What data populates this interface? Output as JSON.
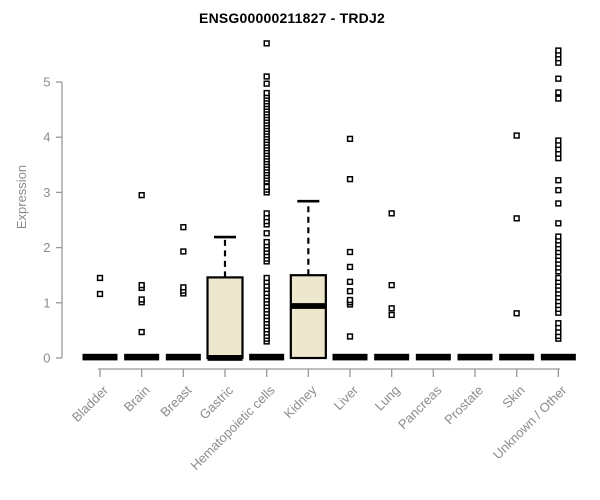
{
  "chart_data": {
    "type": "boxplot",
    "title": "ENSG00000211827 - TRDJ2",
    "ylabel": "Expression",
    "ylim": [
      0,
      5.8
    ],
    "yticks": [
      0,
      1,
      2,
      3,
      4,
      5
    ],
    "grid": false,
    "legend": false,
    "colors": {
      "box_fill": "#EDE8CD",
      "box_stroke": "#000000",
      "axis": "#999999",
      "tick_text": "#8c8c8c",
      "outlier_fill": "#ffffff"
    },
    "categories": [
      "Bladder",
      "Brain",
      "Breast",
      "Gastric",
      "Hematopoietic cells",
      "Kidney",
      "Liver",
      "Lung",
      "Pancreas",
      "Prostate",
      "Skin",
      "Unknown / Other"
    ],
    "series": [
      {
        "category": "Bladder",
        "q1": 0,
        "median": 0,
        "q3": 0,
        "whisker_low": 0,
        "whisker_high": 0,
        "outliers": [
          1.16,
          1.45
        ]
      },
      {
        "category": "Brain",
        "q1": 0,
        "median": 0,
        "q3": 0,
        "whisker_low": 0,
        "whisker_high": 0,
        "outliers": [
          0.47,
          1.01,
          1.06,
          1.27,
          1.32,
          2.95
        ]
      },
      {
        "category": "Breast",
        "q1": 0,
        "median": 0,
        "q3": 0,
        "whisker_low": 0,
        "whisker_high": 0,
        "outliers": [
          1.17,
          1.22,
          1.28,
          1.93,
          2.37
        ]
      },
      {
        "category": "Gastric",
        "q1": 0,
        "median": 0,
        "q3": 1.46,
        "whisker_low": 0,
        "whisker_high": 2.19,
        "outliers": []
      },
      {
        "category": "Hematopoietic cells",
        "q1": 0,
        "median": 0,
        "q3": 0,
        "whisker_low": 0,
        "whisker_high": 0,
        "outliers": [
          0.3,
          0.35,
          0.4,
          0.46,
          0.52,
          0.58,
          0.64,
          0.7,
          0.76,
          0.82,
          0.88,
          0.94,
          1.0,
          1.06,
          1.12,
          1.18,
          1.25,
          1.31,
          1.38,
          1.45,
          1.75,
          1.8,
          1.86,
          1.92,
          1.98,
          2.04,
          2.1,
          2.26,
          2.42,
          2.48,
          2.55,
          2.62,
          3.0,
          3.05,
          3.1,
          3.2,
          3.25,
          3.3,
          3.35,
          3.4,
          3.45,
          3.5,
          3.55,
          3.6,
          3.65,
          3.7,
          3.75,
          3.8,
          3.85,
          3.9,
          3.95,
          4.0,
          4.05,
          4.1,
          4.15,
          4.2,
          4.25,
          4.3,
          4.35,
          4.4,
          4.45,
          4.5,
          4.55,
          4.6,
          4.65,
          4.7,
          4.75,
          4.8,
          4.97,
          5.1,
          5.7
        ]
      },
      {
        "category": "Kidney",
        "q1": 0,
        "median": 0.94,
        "q3": 1.5,
        "whisker_low": 0,
        "whisker_high": 2.84,
        "outliers": []
      },
      {
        "category": "Liver",
        "q1": 0,
        "median": 0,
        "q3": 0,
        "whisker_low": 0,
        "whisker_high": 0,
        "outliers": [
          0.39,
          0.97,
          1.01,
          1.05,
          1.21,
          1.38,
          1.65,
          1.92,
          3.24,
          3.97
        ]
      },
      {
        "category": "Lung",
        "q1": 0,
        "median": 0,
        "q3": 0,
        "whisker_low": 0,
        "whisker_high": 0,
        "outliers": [
          0.78,
          0.9,
          1.32,
          2.62
        ]
      },
      {
        "category": "Pancreas",
        "q1": 0,
        "median": 0,
        "q3": 0,
        "whisker_low": 0,
        "whisker_high": 0,
        "outliers": []
      },
      {
        "category": "Prostate",
        "q1": 0,
        "median": 0,
        "q3": 0,
        "whisker_low": 0,
        "whisker_high": 0,
        "outliers": []
      },
      {
        "category": "Skin",
        "q1": 0,
        "median": 0,
        "q3": 0,
        "whisker_low": 0,
        "whisker_high": 0,
        "outliers": [
          0.81,
          2.53,
          4.03
        ]
      },
      {
        "category": "Unknown / Other",
        "q1": 0,
        "median": 0,
        "q3": 0,
        "whisker_low": 0,
        "whisker_high": 0,
        "outliers": [
          0.35,
          0.4,
          0.47,
          0.55,
          0.63,
          0.82,
          0.89,
          0.96,
          1.03,
          1.1,
          1.17,
          1.24,
          1.31,
          1.38,
          1.45,
          1.57,
          1.64,
          1.71,
          1.78,
          1.85,
          1.92,
          1.99,
          2.06,
          2.13,
          2.2,
          2.44,
          2.8,
          3.04,
          3.22,
          3.62,
          3.7,
          3.78,
          3.86,
          3.94,
          4.7,
          4.81,
          5.06,
          5.35,
          5.43,
          5.5,
          5.57
        ]
      }
    ]
  }
}
